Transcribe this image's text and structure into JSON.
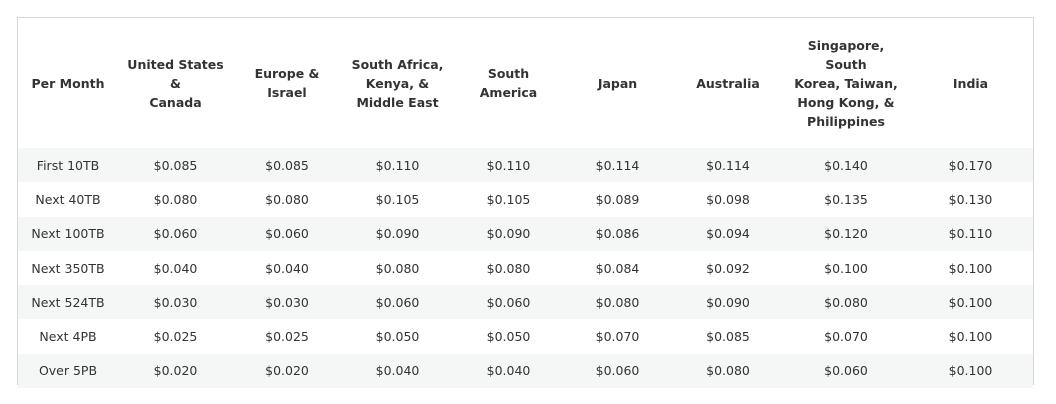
{
  "table": {
    "headers": [
      "Per Month",
      "United States &\nCanada",
      "Europe & Israel",
      "South Africa,\nKenya, &\nMiddle East",
      "South America",
      "Japan",
      "Australia",
      "Singapore, South\nKorea, Taiwan,\nHong Kong, &\nPhilippines",
      "India"
    ],
    "rows": [
      [
        "First 10TB",
        "$0.085",
        "$0.085",
        "$0.110",
        "$0.110",
        "$0.114",
        "$0.114",
        "$0.140",
        "$0.170"
      ],
      [
        "Next 40TB",
        "$0.080",
        "$0.080",
        "$0.105",
        "$0.105",
        "$0.089",
        "$0.098",
        "$0.135",
        "$0.130"
      ],
      [
        "Next 100TB",
        "$0.060",
        "$0.060",
        "$0.090",
        "$0.090",
        "$0.086",
        "$0.094",
        "$0.120",
        "$0.110"
      ],
      [
        "Next 350TB",
        "$0.040",
        "$0.040",
        "$0.080",
        "$0.080",
        "$0.084",
        "$0.092",
        "$0.100",
        "$0.100"
      ],
      [
        "Next 524TB",
        "$0.030",
        "$0.030",
        "$0.060",
        "$0.060",
        "$0.080",
        "$0.090",
        "$0.080",
        "$0.100"
      ],
      [
        "Next 4PB",
        "$0.025",
        "$0.025",
        "$0.050",
        "$0.050",
        "$0.070",
        "$0.085",
        "$0.070",
        "$0.100"
      ],
      [
        "Over 5PB",
        "$0.020",
        "$0.020",
        "$0.040",
        "$0.040",
        "$0.060",
        "$0.080",
        "$0.060",
        "$0.100"
      ]
    ]
  }
}
